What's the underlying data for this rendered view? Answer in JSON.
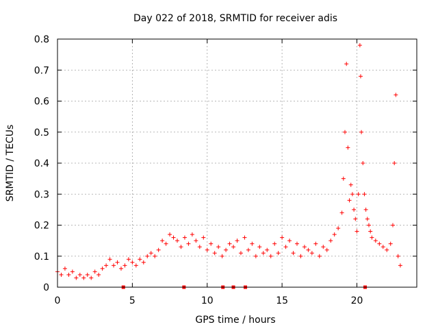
{
  "chart_data": {
    "type": "scatter",
    "title": "Day 022 of 2018, SRMTID for receiver adis",
    "xlabel": "GPS time / hours",
    "ylabel": "SRMTID / TECUs",
    "xlim": [
      0,
      24
    ],
    "ylim": [
      0,
      0.8
    ],
    "xticks": [
      0,
      5,
      10,
      15,
      20
    ],
    "yticks": [
      0,
      0.1,
      0.2,
      0.3,
      0.4,
      0.5,
      0.6,
      0.7,
      0.8
    ],
    "xtick_labels": [
      "0",
      "5",
      "10",
      "15",
      "20"
    ],
    "ytick_labels": [
      "0",
      "0.1",
      "0.2",
      "0.3",
      "0.4",
      "0.5",
      "0.6",
      "0.7",
      "0.8"
    ],
    "grid": true,
    "marker": "+",
    "series_color": "#ff0000",
    "baseline_markers": [
      4.4,
      8.45,
      11.05,
      11.75,
      12.55,
      20.55
    ],
    "series": [
      {
        "name": "SRMTID",
        "x": [
          0.0,
          0.25,
          0.5,
          0.75,
          1.0,
          1.25,
          1.5,
          1.75,
          2.0,
          2.25,
          2.5,
          2.75,
          3.0,
          3.25,
          3.5,
          3.75,
          4.0,
          4.25,
          4.5,
          4.75,
          5.0,
          5.25,
          5.5,
          5.75,
          6.0,
          6.25,
          6.5,
          6.75,
          7.0,
          7.25,
          7.5,
          7.75,
          8.0,
          8.25,
          8.5,
          8.75,
          9.0,
          9.25,
          9.5,
          9.75,
          10.0,
          10.25,
          10.5,
          10.75,
          11.0,
          11.25,
          11.5,
          11.75,
          12.0,
          12.25,
          12.5,
          12.75,
          13.0,
          13.25,
          13.5,
          13.75,
          14.0,
          14.25,
          14.5,
          14.75,
          15.0,
          15.25,
          15.5,
          15.75,
          16.0,
          16.25,
          16.5,
          16.75,
          17.0,
          17.25,
          17.5,
          17.75,
          18.0,
          18.25,
          18.5,
          18.75,
          19.0,
          19.1,
          19.2,
          19.3,
          19.4,
          19.5,
          19.6,
          19.7,
          19.8,
          19.9,
          20.0,
          20.1,
          20.2,
          20.25,
          20.3,
          20.4,
          20.5,
          20.6,
          20.7,
          20.8,
          20.9,
          21.0,
          21.25,
          21.5,
          21.75,
          22.0,
          22.25,
          22.4,
          22.5,
          22.6,
          22.75,
          22.9
        ],
        "y": [
          0.05,
          0.04,
          0.06,
          0.04,
          0.05,
          0.03,
          0.04,
          0.03,
          0.04,
          0.03,
          0.05,
          0.04,
          0.06,
          0.07,
          0.09,
          0.07,
          0.08,
          0.06,
          0.07,
          0.09,
          0.08,
          0.07,
          0.09,
          0.08,
          0.1,
          0.11,
          0.1,
          0.12,
          0.15,
          0.14,
          0.17,
          0.16,
          0.15,
          0.13,
          0.16,
          0.14,
          0.17,
          0.15,
          0.13,
          0.16,
          0.12,
          0.14,
          0.11,
          0.13,
          0.1,
          0.12,
          0.14,
          0.13,
          0.15,
          0.11,
          0.16,
          0.12,
          0.14,
          0.1,
          0.13,
          0.11,
          0.12,
          0.1,
          0.14,
          0.11,
          0.16,
          0.13,
          0.15,
          0.11,
          0.14,
          0.1,
          0.13,
          0.12,
          0.11,
          0.14,
          0.1,
          0.13,
          0.12,
          0.15,
          0.17,
          0.19,
          0.24,
          0.35,
          0.5,
          0.72,
          0.45,
          0.28,
          0.33,
          0.3,
          0.25,
          0.22,
          0.18,
          0.3,
          0.78,
          0.68,
          0.5,
          0.4,
          0.3,
          0.25,
          0.22,
          0.2,
          0.18,
          0.16,
          0.15,
          0.14,
          0.13,
          0.12,
          0.14,
          0.2,
          0.4,
          0.62,
          0.1,
          0.07
        ]
      }
    ]
  }
}
